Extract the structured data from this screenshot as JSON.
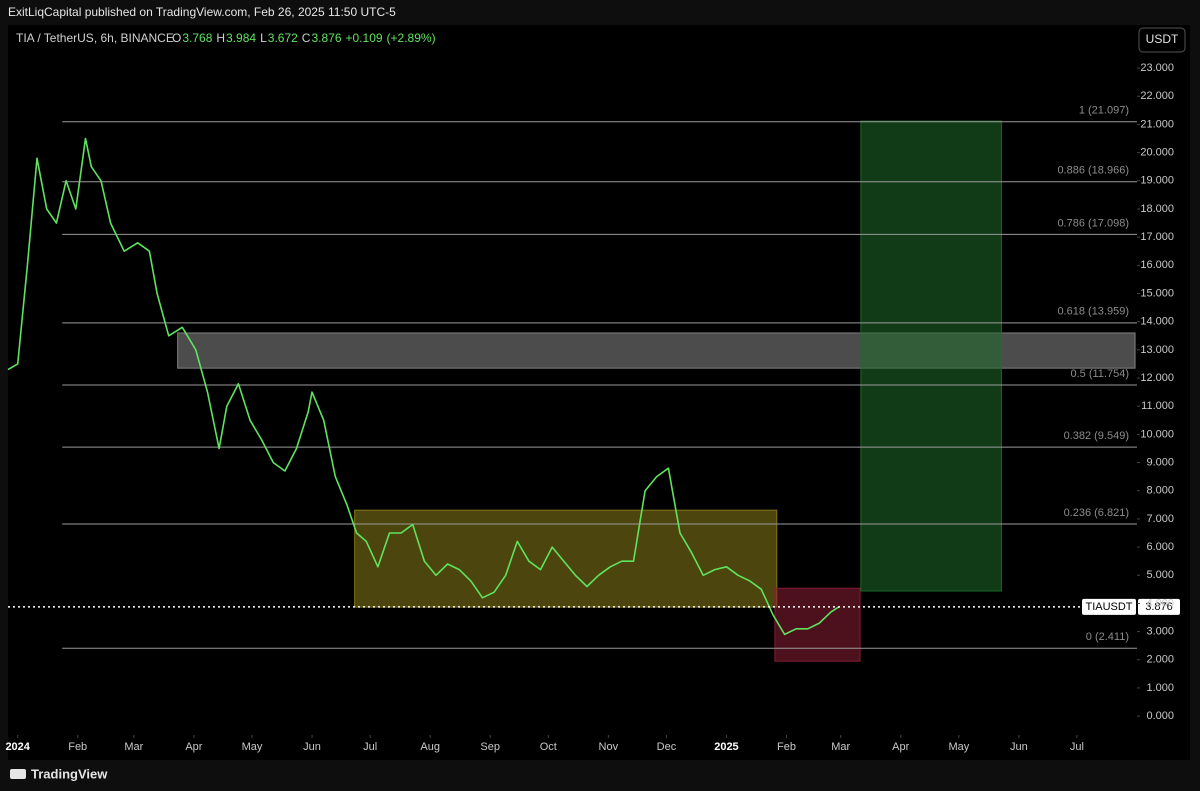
{
  "header": "ExitLiqCapital published on TradingView.com, Feb 26, 2025 11:50 UTC-5",
  "footer": "TradingView",
  "chart_data": {
    "type": "line",
    "symbol": "TIA / TetherUS, 6h, BINANCE",
    "ohlc": [
      {
        "label": "O",
        "value": 3.768
      },
      {
        "label": "H",
        "value": 3.984
      },
      {
        "label": "L",
        "value": 3.672
      },
      {
        "label": "C",
        "value": 3.876
      }
    ],
    "change": {
      "value": 0.109,
      "label": "+0.109"
    },
    "change_pct": {
      "value": 2.89,
      "label": "(+2.89%)"
    },
    "currency": "USDT",
    "xlim": [
      -5,
      578
    ],
    "xticks": [
      {
        "value": 0,
        "label": "2024"
      },
      {
        "value": 31,
        "label": "Feb"
      },
      {
        "value": 60,
        "label": "Mar"
      },
      {
        "value": 91,
        "label": "Apr"
      },
      {
        "value": 121,
        "label": "May"
      },
      {
        "value": 152,
        "label": "Jun"
      },
      {
        "value": 182,
        "label": "Jul"
      },
      {
        "value": 213,
        "label": "Aug"
      },
      {
        "value": 244,
        "label": "Sep"
      },
      {
        "value": 274,
        "label": "Oct"
      },
      {
        "value": 305,
        "label": "Nov"
      },
      {
        "value": 335,
        "label": "Dec"
      },
      {
        "value": 366,
        "label": "2025"
      },
      {
        "value": 397,
        "label": "Feb"
      },
      {
        "value": 425,
        "label": "Mar"
      },
      {
        "value": 456,
        "label": "Apr"
      },
      {
        "value": 486,
        "label": "May"
      },
      {
        "value": 517,
        "label": "Jun"
      },
      {
        "value": 547,
        "label": "Jul"
      }
    ],
    "ylim": [
      -0.67,
      24.53
    ],
    "yticks": [
      {
        "value": 0,
        "label": "0.000"
      },
      {
        "value": 1,
        "label": "1.000"
      },
      {
        "value": 2,
        "label": "2.000"
      },
      {
        "value": 3,
        "label": "3.000"
      },
      {
        "value": 4,
        "label": "4.000"
      },
      {
        "value": 5,
        "label": "5.000"
      },
      {
        "value": 6,
        "label": "6.000"
      },
      {
        "value": 7,
        "label": "7.000"
      },
      {
        "value": 8,
        "label": "8.000"
      },
      {
        "value": 9,
        "label": "9.000"
      },
      {
        "value": 10,
        "label": "10.000"
      },
      {
        "value": 11,
        "label": "11.000"
      },
      {
        "value": 12,
        "label": "12.000"
      },
      {
        "value": 13,
        "label": "13.000"
      },
      {
        "value": 14,
        "label": "14.000"
      },
      {
        "value": 15,
        "label": "15.000"
      },
      {
        "value": 16,
        "label": "16.000"
      },
      {
        "value": 17,
        "label": "17.000"
      },
      {
        "value": 18,
        "label": "18.000"
      },
      {
        "value": 19,
        "label": "19.000"
      },
      {
        "value": 20,
        "label": "20.000"
      },
      {
        "value": 21,
        "label": "21.000"
      },
      {
        "value": 22,
        "label": "22.000"
      },
      {
        "value": 23,
        "label": "23.000"
      }
    ],
    "series": [
      {
        "name": "TIAUSDT",
        "color": "#5fe35f",
        "x": [
          -5,
          0,
          5,
          10,
          15,
          20,
          25,
          30,
          35,
          38,
          43,
          48,
          55,
          62,
          68,
          72,
          78,
          85,
          92,
          98,
          104,
          108,
          114,
          120,
          126,
          132,
          138,
          144,
          150,
          152,
          158,
          164,
          170,
          175,
          180,
          186,
          192,
          198,
          204,
          210,
          216,
          222,
          228,
          234,
          240,
          246,
          252,
          258,
          264,
          270,
          276,
          282,
          288,
          294,
          300,
          306,
          312,
          318,
          324,
          330,
          336,
          342,
          348,
          354,
          360,
          366,
          372,
          378,
          384,
          390,
          396,
          402,
          408,
          414,
          420,
          424
        ],
        "values": [
          12.3,
          12.5,
          16,
          19.8,
          18,
          17.5,
          19,
          18,
          20.5,
          19.5,
          19,
          17.5,
          16.5,
          16.8,
          16.5,
          15,
          13.5,
          13.8,
          13,
          11.5,
          9.5,
          11,
          11.8,
          10.5,
          9.8,
          9,
          8.7,
          9.5,
          10.8,
          11.5,
          10.5,
          8.5,
          7.5,
          6.5,
          6.2,
          5.3,
          6.5,
          6.5,
          6.8,
          5.5,
          5,
          5.4,
          5.2,
          4.8,
          4.2,
          4.4,
          5,
          6.2,
          5.5,
          5.2,
          6,
          5.5,
          5,
          4.6,
          5,
          5.3,
          5.5,
          5.5,
          8,
          8.5,
          8.8,
          6.5,
          5.8,
          5,
          5.2,
          5.3,
          5,
          4.8,
          4.5,
          3.6,
          2.9,
          3.1,
          3.1,
          3.3,
          3.7,
          3.876
        ]
      }
    ],
    "last_price": 3.876,
    "fib_start": 23,
    "fib_levels": [
      {
        "label": "1 (21.097)",
        "value": 21.097
      },
      {
        "label": "0.886 (18.966)",
        "value": 18.966
      },
      {
        "label": "0.786 (17.098)",
        "value": 17.098
      },
      {
        "label": "0.618 (13.959)",
        "value": 13.959
      },
      {
        "label": "0.5 (11.754)",
        "value": 11.754
      },
      {
        "label": "0.382 (9.549)",
        "value": 9.549
      },
      {
        "label": "0.236 (6.821)",
        "value": 6.821
      },
      {
        "label": "0 (2.411)",
        "value": 2.411
      }
    ],
    "zones": [
      {
        "x": [
          82.6,
          577
        ],
        "y": [
          12.35,
          13.6
        ],
        "color": "#8a8a8a"
      },
      {
        "x": [
          174,
          392
        ],
        "y": [
          3.87,
          7.31
        ],
        "color": "#8a7d1a"
      },
      {
        "x": [
          391,
          435
        ],
        "y": [
          1.95,
          4.54
        ],
        "color": "#8a1f35"
      },
      {
        "x": [
          435.4,
          508
        ],
        "y": [
          4.44,
          21.12
        ],
        "color": "#1f6b2a"
      }
    ]
  }
}
